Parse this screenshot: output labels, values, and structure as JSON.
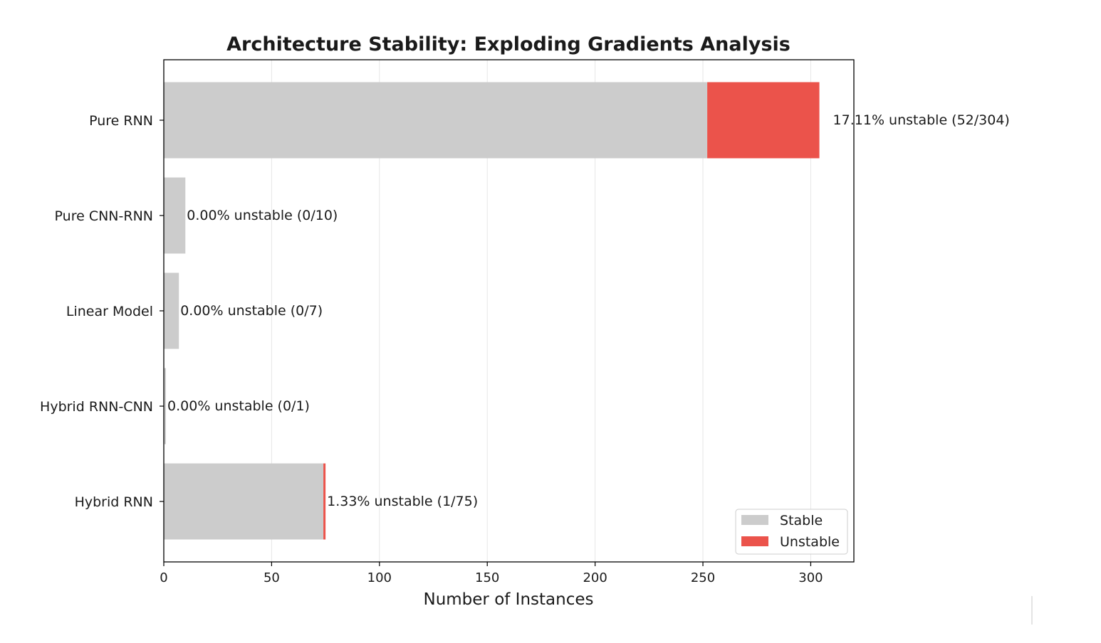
{
  "chart_data": {
    "type": "bar",
    "orientation": "horizontal",
    "stacked": true,
    "title": "Architecture Stability: Exploding Gradients Analysis",
    "xlabel": "Number of Instances",
    "ylabel": "",
    "xlim": [
      0,
      320
    ],
    "x_ticks": [
      0,
      50,
      100,
      150,
      200,
      250,
      300
    ],
    "grid": "vertical",
    "categories": [
      "Pure RNN",
      "Pure CNN-RNN",
      "Linear Model",
      "Hybrid RNN-CNN",
      "Hybrid RNN"
    ],
    "series": [
      {
        "name": "Stable",
        "color": "#cccccc",
        "values": [
          252,
          10,
          7,
          1,
          74
        ]
      },
      {
        "name": "Unstable",
        "color": "#eb534b",
        "values": [
          52,
          0,
          0,
          0,
          1
        ]
      }
    ],
    "bar_labels": [
      "17.11% unstable (52/304)",
      "0.00% unstable (0/10)",
      "0.00% unstable (0/7)",
      "0.00% unstable (0/1)",
      "1.33% unstable (1/75)"
    ],
    "legend": {
      "position": "lower-right",
      "entries": [
        "Stable",
        "Unstable"
      ]
    }
  }
}
